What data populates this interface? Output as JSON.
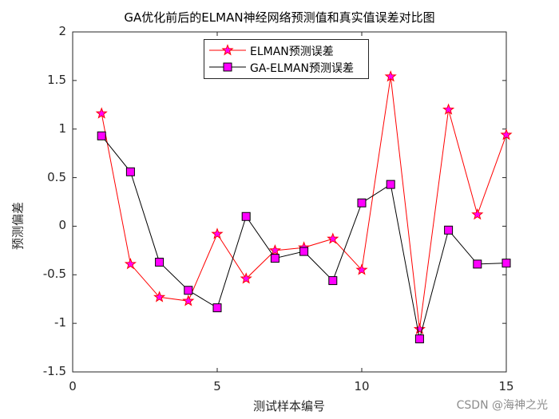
{
  "figure": {
    "title": "GA优化前后的ELMAN神经网络预测值和真实值误差对比图",
    "xlabel": "测试样本编号",
    "ylabel": "预测偏差",
    "watermark": "CSDN @海神之光"
  },
  "legend": {
    "items": [
      {
        "label": "ELMAN预测误差",
        "color": "#ff0000",
        "marker": "star",
        "marker_fill": "#ff00ff"
      },
      {
        "label": "GA-ELMAN预测误差",
        "color": "#000000",
        "marker": "square",
        "marker_fill": "#ff00ff"
      }
    ]
  },
  "chart_data": {
    "type": "line",
    "title": "GA优化前后的ELMAN神经网络预测值和真实值误差对比图",
    "xlabel": "测试样本编号",
    "ylabel": "预测偏差",
    "xlim": [
      0,
      15
    ],
    "ylim": [
      -1.5,
      2
    ],
    "xticks": [
      0,
      5,
      10,
      15
    ],
    "xtick_labels": [
      "0",
      "5",
      "10",
      "15"
    ],
    "yticks": [
      -1.5,
      -1,
      -0.5,
      0,
      0.5,
      1,
      1.5,
      2
    ],
    "ytick_labels": [
      "-1.5",
      "-1",
      "-0.5",
      "0",
      "0.5",
      "1",
      "1.5",
      "2"
    ],
    "grid": false,
    "legend_position": "top center (inside)",
    "x": [
      1,
      2,
      3,
      4,
      5,
      6,
      7,
      8,
      9,
      10,
      11,
      12,
      13,
      14,
      15
    ],
    "series": [
      {
        "name": "ELMAN预测误差",
        "color": "#ff0000",
        "marker": "star",
        "values": [
          1.16,
          -0.39,
          -0.73,
          -0.77,
          -0.08,
          -0.54,
          -0.25,
          -0.22,
          -0.13,
          -0.45,
          1.54,
          -1.06,
          1.2,
          0.12,
          0.94
        ]
      },
      {
        "name": "GA-ELMAN预测误差",
        "color": "#000000",
        "marker": "square",
        "values": [
          0.93,
          0.56,
          -0.37,
          -0.66,
          -0.84,
          0.1,
          -0.33,
          -0.26,
          -0.56,
          0.24,
          0.43,
          -1.16,
          -0.04,
          -0.39,
          -0.38
        ]
      }
    ]
  }
}
